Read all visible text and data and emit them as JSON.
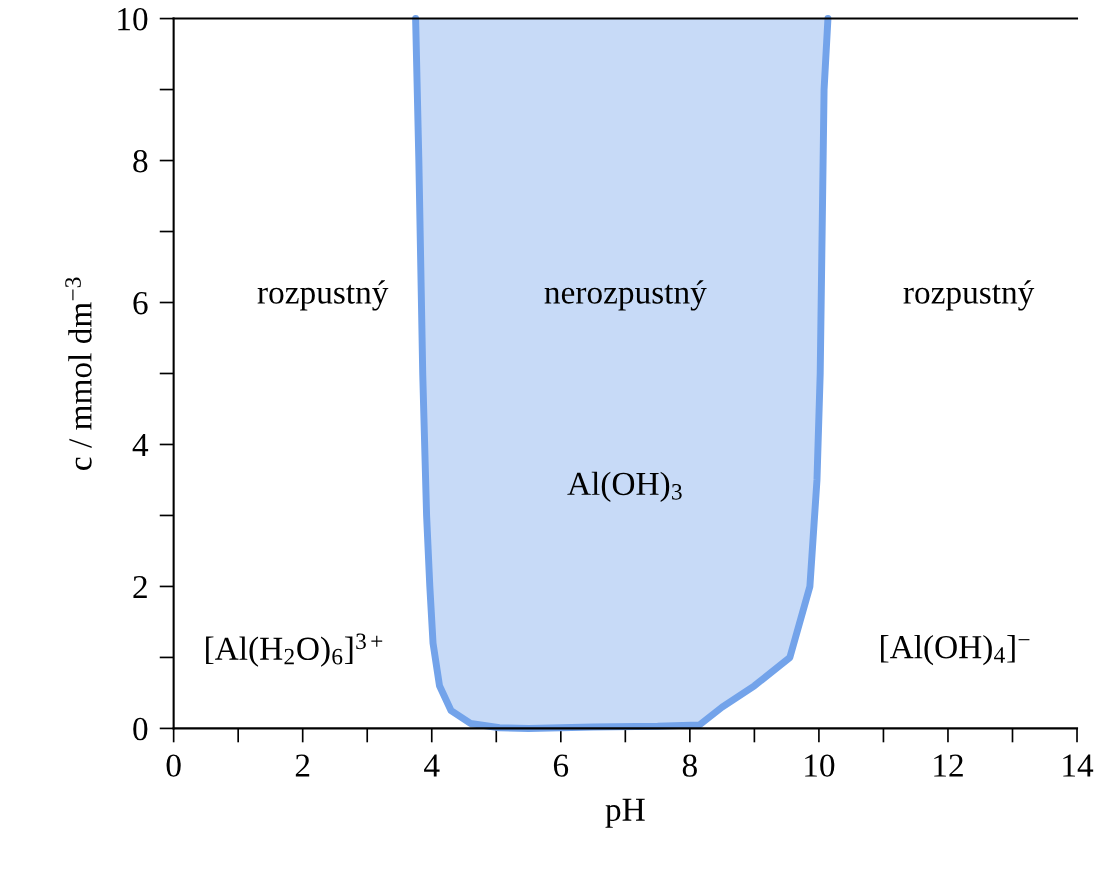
{
  "chart_data": {
    "type": "line",
    "xlabel": "pH",
    "ylabel": "c / mmol dm$^{−3}$",
    "xlim": [
      0,
      14
    ],
    "ylim": [
      0,
      10
    ],
    "xticks": [
      0,
      {
        "value": 1,
        "label": null
      },
      2,
      {
        "value": 3,
        "label": null
      },
      4,
      {
        "value": 5,
        "label": null
      },
      6,
      {
        "value": 7,
        "label": null
      },
      8,
      {
        "value": 9,
        "label": null
      },
      10,
      {
        "value": 11,
        "label": null
      },
      12,
      {
        "value": 13,
        "label": null
      },
      14
    ],
    "yticks": [
      0,
      {
        "value": 1,
        "label": null
      },
      2,
      {
        "value": 3,
        "label": null
      },
      4,
      {
        "value": 5,
        "label": null
      },
      6,
      {
        "value": 7,
        "label": null
      },
      8,
      {
        "value": 9,
        "label": null
      },
      10
    ],
    "grid": false,
    "legend": false,
    "marker": "none",
    "line_style": "solid",
    "series": [
      {
        "color": "#73a3ea",
        "x": [
          3.75,
          3.8,
          3.86,
          3.92,
          3.97,
          4.02,
          4.12,
          4.3,
          4.6,
          5.05,
          5.5,
          6.5,
          7.5,
          8.15,
          8.5,
          9.0,
          9.55,
          9.86,
          9.97,
          10.02,
          10.05,
          10.08,
          10.14
        ],
        "values": [
          10,
          8,
          5,
          3,
          2,
          1.2,
          0.6,
          0.25,
          0.07,
          0.01,
          0,
          0.02,
          0.03,
          0.05,
          0.3,
          0.6,
          1.0,
          2.0,
          3.5,
          5,
          7,
          9,
          10
        ],
        "lower": [
          10,
          8,
          5,
          3,
          2,
          1.2,
          0.6,
          0.25,
          0.07,
          0.01,
          0,
          0.02,
          0.03,
          0.05,
          0.3,
          0.6,
          1.0,
          2.0,
          3.5,
          5,
          7,
          9,
          10
        ],
        "upper": [
          10,
          10,
          10,
          10,
          10,
          10,
          10,
          10,
          10,
          10,
          10,
          10,
          10,
          10,
          10,
          10,
          10,
          10,
          10,
          10,
          10,
          10,
          10
        ]
      }
    ],
    "annotations": [
      "rozpustný",
      "nerozpustný",
      "rozpustný",
      "Al(OH)$_{3}$",
      "[Al(H$_{2}$O)$_{6}$]$^{3+}$",
      "[Al(OH)$_{4}$]$^{−}$"
    ]
  }
}
